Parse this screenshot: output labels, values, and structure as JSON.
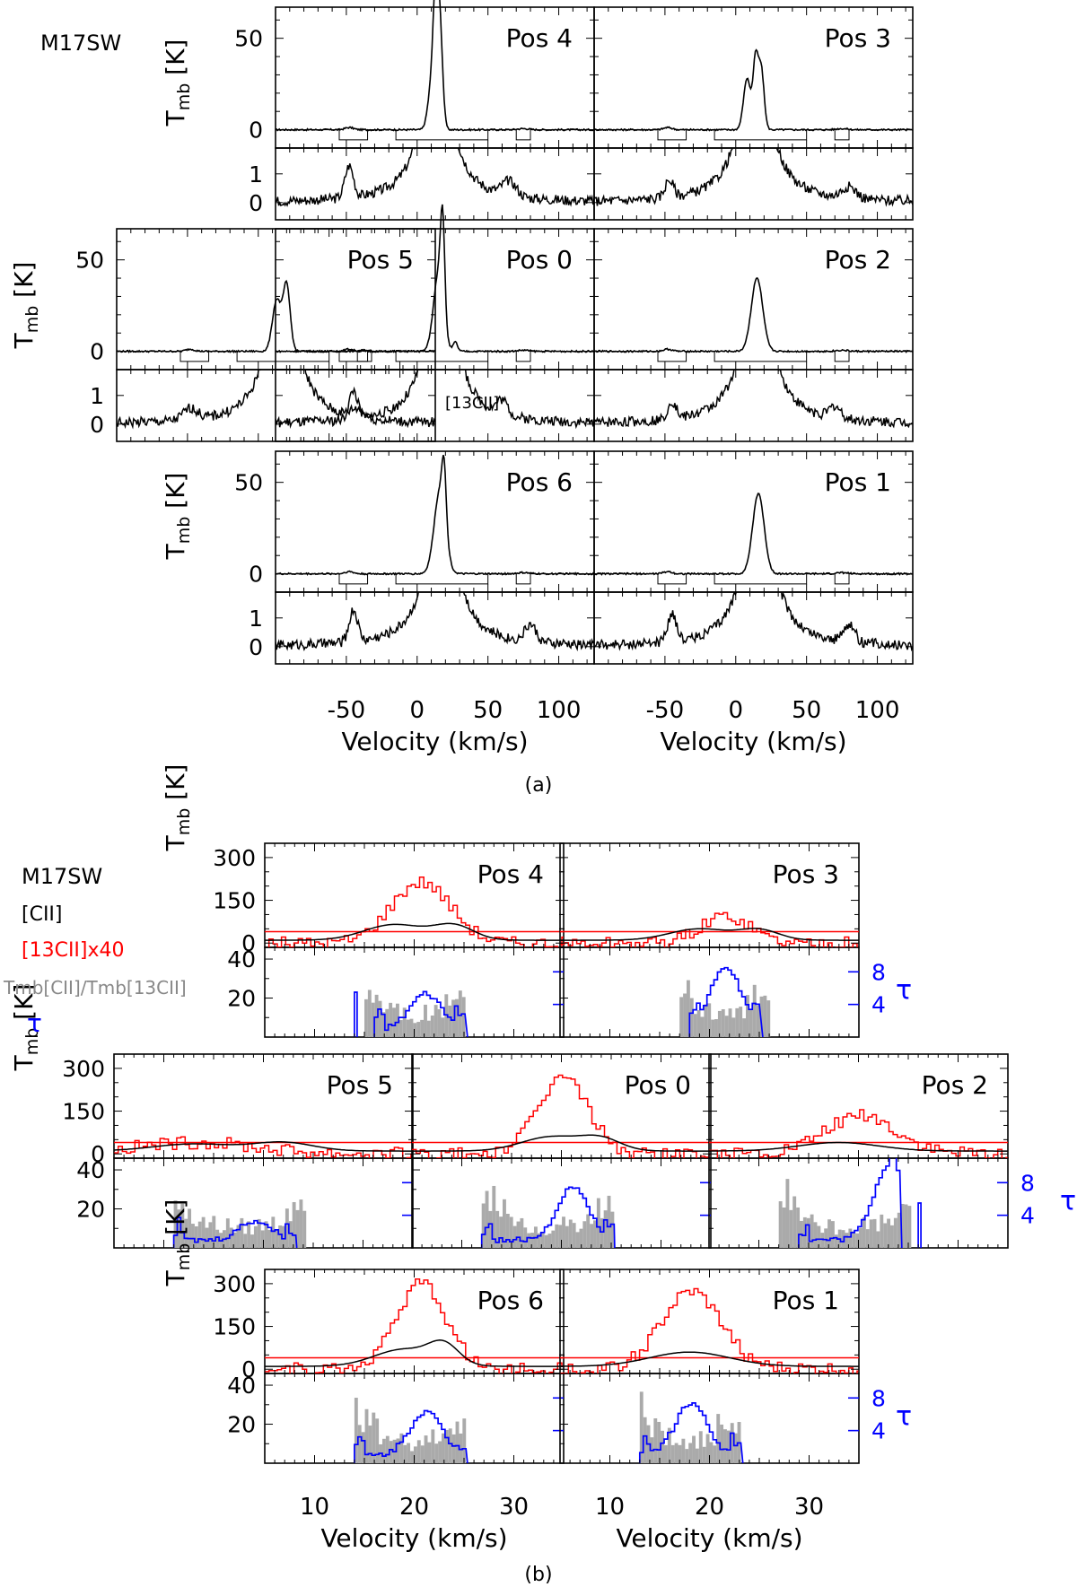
{
  "figure": {
    "object": "M17SW",
    "caption_a": "(a)",
    "caption_b": "(b)"
  },
  "chart_data": [
    {
      "id": "a",
      "type": "line",
      "title": "M17SW",
      "xlabel": "Velocity (km/s)",
      "ylabel_top": "Tmb [K]",
      "xlim": [
        -100,
        125
      ],
      "xticks_major": [
        -50,
        0,
        50,
        100
      ],
      "ylim_top": [
        -10,
        67
      ],
      "yticks_top": [
        0,
        50
      ],
      "ylim_bottom": [
        -0.6,
        1.9
      ],
      "yticks_bottom": [
        0,
        1
      ],
      "bottom_panel_note": "[13CII]",
      "windows": [
        [
          -55,
          -35
        ],
        [
          -15,
          50
        ],
        [
          70,
          80
        ]
      ],
      "panels": [
        {
          "label": "Pos 4",
          "row": 0,
          "col": 1,
          "components": [
            {
              "center": 10,
              "height": 22,
              "width": 2.5
            },
            {
              "center": 13,
              "height": 58,
              "width": 1.8
            },
            {
              "center": 16,
              "height": 55,
              "width": 2.0
            }
          ],
          "iso": [
            {
              "center": -48,
              "height": 1.1,
              "width": 3
            },
            {
              "center": 65,
              "height": 0.5,
              "width": 5
            }
          ]
        },
        {
          "label": "Pos 3",
          "row": 0,
          "col": 2,
          "components": [
            {
              "center": 8,
              "height": 28,
              "width": 2.5
            },
            {
              "center": 14,
              "height": 37,
              "width": 1.8
            },
            {
              "center": 18,
              "height": 33,
              "width": 2.0
            }
          ],
          "iso": [
            {
              "center": -47,
              "height": 0.6,
              "width": 3
            },
            {
              "center": 80,
              "height": 0.4,
              "width": 5
            }
          ]
        },
        {
          "label": "Pos 5",
          "row": 1,
          "col": 0,
          "components": [
            {
              "center": 13,
              "height": 28,
              "width": 3.0
            },
            {
              "center": 20,
              "height": 36,
              "width": 2.5
            }
          ],
          "iso": [
            {
              "center": -48,
              "height": 0.4,
              "width": 5
            },
            {
              "center": 70,
              "height": 0.3,
              "width": 5
            }
          ]
        },
        {
          "label": "Pos 0",
          "row": 1,
          "col": 1,
          "components": [
            {
              "center": 15,
              "height": 42,
              "width": 3.5
            },
            {
              "center": 18,
              "height": 50,
              "width": 1.5
            },
            {
              "center": 27,
              "height": 5,
              "width": 1.5
            }
          ],
          "iso": [
            {
              "center": -45,
              "height": 1.0,
              "width": 3
            },
            {
              "center": 60,
              "height": 0.5,
              "width": 4
            }
          ]
        },
        {
          "label": "Pos 2",
          "row": 1,
          "col": 2,
          "components": [
            {
              "center": 15,
              "height": 40,
              "width": 4.0
            }
          ],
          "iso": [
            {
              "center": -45,
              "height": 0.6,
              "width": 3
            },
            {
              "center": 70,
              "height": 0.4,
              "width": 4
            }
          ]
        },
        {
          "label": "Pos 6",
          "row": 2,
          "col": 1,
          "components": [
            {
              "center": 16,
              "height": 45,
              "width": 4.0
            },
            {
              "center": 19,
              "height": 30,
              "width": 1.5
            }
          ],
          "iso": [
            {
              "center": -45,
              "height": 1.1,
              "width": 3
            },
            {
              "center": 80,
              "height": 0.6,
              "width": 4
            }
          ]
        },
        {
          "label": "Pos 1",
          "row": 2,
          "col": 2,
          "components": [
            {
              "center": 16,
              "height": 44,
              "width": 4.0
            }
          ],
          "iso": [
            {
              "center": -45,
              "height": 1.0,
              "width": 3
            },
            {
              "center": 80,
              "height": 0.6,
              "width": 4
            }
          ]
        }
      ]
    },
    {
      "id": "b",
      "type": "line",
      "title": "M17SW",
      "xlabel": "Velocity (km/s)",
      "ylabel_top": "Tmb [K]",
      "xlim": [
        5,
        35
      ],
      "xticks_major": [
        10,
        20,
        30
      ],
      "ylim_top": [
        -15,
        350
      ],
      "yticks_top": [
        0,
        150,
        300
      ],
      "ylim_bottom": [
        0,
        46
      ],
      "yticks_bottom": [
        20,
        40
      ],
      "tau_ticks": [
        4,
        8
      ],
      "legend": [
        {
          "label": "[CII]",
          "color": "#000000"
        },
        {
          "label": "[13CII]x40",
          "color": "#ff0000"
        },
        {
          "label": "Tmb[CII]/Tmb[13CII]",
          "color": "#999999"
        },
        {
          "label": "τ",
          "color": "#0000ff"
        }
      ],
      "noise_level_K": 40,
      "panels": [
        {
          "label": "Pos 4",
          "row": 0,
          "col": 1,
          "cii": [
            {
              "center": 18,
              "height": 55,
              "width": 3
            },
            {
              "center": 24,
              "height": 50,
              "width": 2
            }
          ],
          "c13": {
            "center": 20.5,
            "height": 215,
            "width": 3.0
          },
          "tau": {
            "lo": 16,
            "hi": 25,
            "peak_center": 21,
            "peak": 5
          },
          "ratio_extent": [
            15,
            25
          ],
          "extra_tau_spike": 14
        },
        {
          "label": "Pos 3",
          "row": 0,
          "col": 2,
          "cii": [
            {
              "center": 19,
              "height": 40,
              "width": 3
            },
            {
              "center": 25,
              "height": 35,
              "width": 2
            }
          ],
          "c13": {
            "center": 21.5,
            "height": 95,
            "width": 2.5
          },
          "tau": {
            "lo": 18,
            "hi": 25,
            "peak_center": 21.5,
            "peak": 8
          },
          "ratio_extent": [
            17,
            26
          ]
        },
        {
          "label": "Pos 5",
          "row": 1,
          "col": 0,
          "cii": [
            {
              "center": 13,
              "height": 25,
              "width": 4
            },
            {
              "center": 22,
              "height": 30,
              "width": 3
            }
          ],
          "c13": {
            "center": 13,
            "height": 40,
            "width": 6
          },
          "tau": {
            "lo": 11,
            "hi": 23,
            "peak_center": 19,
            "peak": 3
          },
          "ratio_extent": [
            11,
            24
          ]
        },
        {
          "label": "Pos 0",
          "row": 1,
          "col": 1,
          "cii": [
            {
              "center": 19,
              "height": 50,
              "width": 3
            },
            {
              "center": 24,
              "height": 40,
              "width": 2
            }
          ],
          "c13": {
            "center": 20,
            "height": 270,
            "width": 2.5
          },
          "tau": {
            "lo": 12,
            "hi": 25,
            "peak_center": 21,
            "peak": 7
          },
          "ratio_extent": [
            12,
            25
          ]
        },
        {
          "label": "Pos 2",
          "row": 1,
          "col": 2,
          "cii": [
            {
              "center": 18,
              "height": 30,
              "width": 4
            }
          ],
          "c13": {
            "center": 20,
            "height": 135,
            "width": 3.5
          },
          "tau": {
            "lo": 14,
            "hi": 24,
            "peak_center": 23,
            "peak": 10
          },
          "ratio_extent": [
            12,
            25
          ],
          "extra_tau_spike": 26
        },
        {
          "label": "Pos 6",
          "row": 2,
          "col": 1,
          "cii": [
            {
              "center": 19,
              "height": 60,
              "width": 3
            },
            {
              "center": 23,
              "height": 65,
              "width": 1.5
            }
          ],
          "c13": {
            "center": 20.5,
            "height": 300,
            "width": 2.5
          },
          "tau": {
            "lo": 14,
            "hi": 25,
            "peak_center": 21,
            "peak": 6
          },
          "ratio_extent": [
            14,
            25
          ]
        },
        {
          "label": "Pos 1",
          "row": 2,
          "col": 2,
          "cii": [
            {
              "center": 18,
              "height": 50,
              "width": 4
            }
          ],
          "c13": {
            "center": 18,
            "height": 270,
            "width": 3.0
          },
          "tau": {
            "lo": 13,
            "hi": 23,
            "peak_center": 18,
            "peak": 7
          },
          "ratio_extent": [
            13,
            23
          ]
        }
      ]
    }
  ]
}
